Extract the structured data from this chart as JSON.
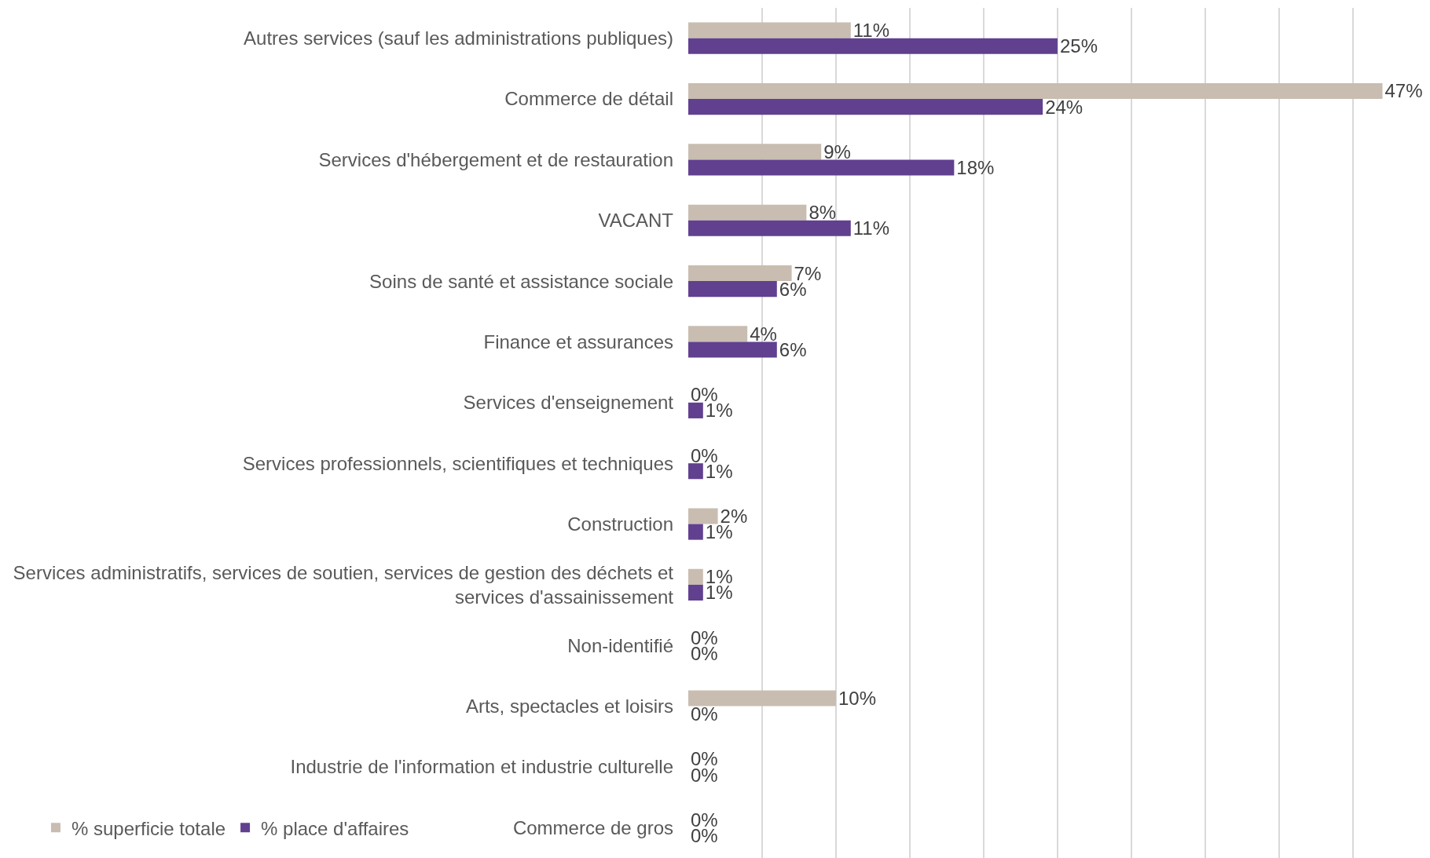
{
  "chart_data": {
    "type": "bar",
    "orientation": "horizontal",
    "categories": [
      "Autres services (sauf les administrations publiques)",
      "Commerce de détail",
      "Services d'hébergement et de restauration",
      "VACANT",
      "Soins de santé et assistance sociale",
      "Finance et assurances",
      "Services d'enseignement",
      "Services professionnels, scientifiques et techniques",
      "Construction",
      "Services administratifs, services de soutien, services de gestion des déchets et services d'assainissement",
      "Non-identifié",
      "Arts, spectacles et loisirs",
      "Industrie de l'information et industrie culturelle",
      "Commerce de gros"
    ],
    "series": [
      {
        "name": "% superficie totale",
        "color": "#c8bdb0",
        "values": [
          11,
          47,
          9,
          8,
          7,
          4,
          0,
          0,
          2,
          1,
          0,
          10,
          0,
          0
        ],
        "value_labels": [
          "11%",
          "47%",
          "9%",
          "8%",
          "7%",
          "4%",
          "0%",
          "0%",
          "2%",
          "1%",
          "0%",
          "10%",
          "0%",
          "0%"
        ]
      },
      {
        "name": "% place d'affaires",
        "color": "#61408f",
        "values": [
          25,
          24,
          18,
          11,
          6,
          6,
          1,
          1,
          1,
          1,
          0,
          0,
          0,
          0
        ],
        "value_labels": [
          "25%",
          "24%",
          "18%",
          "11%",
          "6%",
          "6%",
          "1%",
          "1%",
          "1%",
          "1%",
          "0%",
          "0%",
          "0%",
          "0%"
        ]
      }
    ],
    "tick_labels": "y",
    "grid": "x",
    "legend": "bottom left"
  }
}
